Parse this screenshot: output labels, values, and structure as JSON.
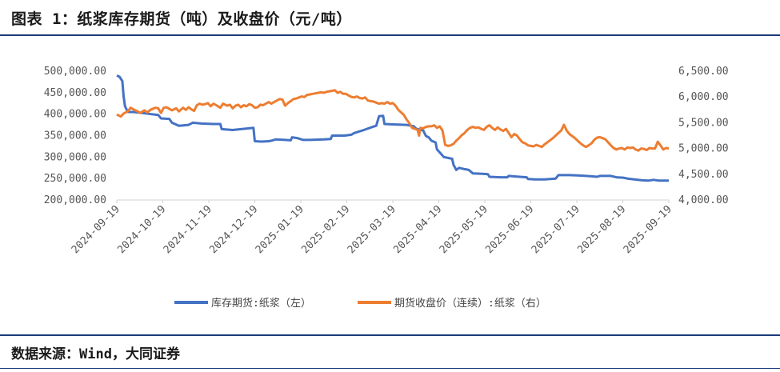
{
  "header": {
    "title": "图表 1：纸浆库存期货（吨）及收盘价（元/吨）"
  },
  "footer": {
    "source": "数据来源：Wind，大同证券"
  },
  "chart_data": {
    "type": "line",
    "x_labels": [
      "2024-09-19",
      "2024-10-19",
      "2024-11-19",
      "2024-12-19",
      "2025-01-19",
      "2025-02-19",
      "2025-03-19",
      "2025-04-19",
      "2025-05-19",
      "2025-06-19",
      "2025-07-19",
      "2025-08-19",
      "2025-09-19"
    ],
    "y_left": {
      "ticks": [
        "200,000.00",
        "250,000.00",
        "300,000.00",
        "350,000.00",
        "400,000.00",
        "450,000.00",
        "500,000.00"
      ],
      "range": [
        200000,
        500000
      ]
    },
    "y_right": {
      "ticks": [
        "4,000.00",
        "4,500.00",
        "5,000.00",
        "5,500.00",
        "6,000.00",
        "6,500.00"
      ],
      "range": [
        4000,
        6500
      ]
    },
    "grid": false,
    "legend_position": "bottom",
    "series": [
      {
        "name": "库存期货:纸浆（左）",
        "axis": "left",
        "color": "#4472c4",
        "points": [
          [
            0,
            490000
          ],
          [
            2,
            487000
          ],
          [
            4,
            477000
          ],
          [
            5,
            440000
          ],
          [
            6,
            418000
          ],
          [
            8,
            405000
          ],
          [
            12,
            405000
          ],
          [
            18,
            403000
          ],
          [
            25,
            400000
          ],
          [
            30,
            398000
          ],
          [
            32,
            390000
          ],
          [
            38,
            389000
          ],
          [
            40,
            380000
          ],
          [
            45,
            373000
          ],
          [
            52,
            375000
          ],
          [
            55,
            380000
          ],
          [
            62,
            378000
          ],
          [
            70,
            377000
          ],
          [
            75,
            377000
          ],
          [
            76,
            365000
          ],
          [
            84,
            363000
          ],
          [
            90,
            365000
          ],
          [
            96,
            367000
          ],
          [
            99,
            368000
          ],
          [
            100,
            337000
          ],
          [
            105,
            336000
          ],
          [
            110,
            337000
          ],
          [
            112,
            338000
          ],
          [
            115,
            341000
          ],
          [
            122,
            340000
          ],
          [
            126,
            339000
          ],
          [
            127,
            346000
          ],
          [
            131,
            344000
          ],
          [
            135,
            340000
          ],
          [
            140,
            340000
          ],
          [
            150,
            341000
          ],
          [
            155,
            342000
          ],
          [
            156,
            350000
          ],
          [
            165,
            350000
          ],
          [
            170,
            352000
          ],
          [
            172,
            356000
          ],
          [
            178,
            362000
          ],
          [
            185,
            370000
          ],
          [
            188,
            373000
          ],
          [
            190,
            395000
          ],
          [
            193,
            396000
          ],
          [
            194,
            377000
          ],
          [
            200,
            376000
          ],
          [
            210,
            375000
          ],
          [
            215,
            372000
          ],
          [
            217,
            366000
          ],
          [
            222,
            362000
          ],
          [
            224,
            349000
          ],
          [
            226,
            346000
          ],
          [
            228,
            338000
          ],
          [
            231,
            334000
          ],
          [
            232,
            318000
          ],
          [
            237,
            300000
          ],
          [
            240,
            298000
          ],
          [
            243,
            296000
          ],
          [
            244,
            282000
          ],
          [
            246,
            270000
          ],
          [
            248,
            275000
          ],
          [
            252,
            272000
          ],
          [
            255,
            270000
          ],
          [
            258,
            262000
          ],
          [
            265,
            261000
          ],
          [
            269,
            260000
          ],
          [
            270,
            254000
          ],
          [
            278,
            253000
          ],
          [
            283,
            253000
          ],
          [
            284,
            256000
          ],
          [
            288,
            255000
          ],
          [
            292,
            254000
          ],
          [
            297,
            253000
          ],
          [
            298,
            249000
          ],
          [
            303,
            248000
          ],
          [
            310,
            248000
          ],
          [
            318,
            250000
          ],
          [
            320,
            258000
          ],
          [
            328,
            258000
          ],
          [
            335,
            257000
          ],
          [
            340,
            256000
          ],
          [
            345,
            255000
          ],
          [
            348,
            254000
          ],
          [
            350,
            256000
          ],
          [
            358,
            256000
          ],
          [
            362,
            253000
          ],
          [
            367,
            252000
          ],
          [
            370,
            250000
          ],
          [
            375,
            248000
          ],
          [
            380,
            246000
          ],
          [
            385,
            245000
          ],
          [
            389,
            247000
          ],
          [
            393,
            245000
          ],
          [
            398,
            245000
          ],
          [
            400,
            245000
          ]
        ]
      },
      {
        "name": "期货收盘价（连续）:纸浆（右）",
        "axis": "right",
        "color": "#ed7d31",
        "points": [
          [
            0,
            5660
          ],
          [
            3,
            5620
          ],
          [
            5,
            5680
          ],
          [
            8,
            5720
          ],
          [
            10,
            5790
          ],
          [
            12,
            5760
          ],
          [
            15,
            5720
          ],
          [
            17,
            5690
          ],
          [
            20,
            5740
          ],
          [
            22,
            5700
          ],
          [
            25,
            5760
          ],
          [
            28,
            5790
          ],
          [
            30,
            5780
          ],
          [
            32,
            5690
          ],
          [
            34,
            5790
          ],
          [
            36,
            5800
          ],
          [
            38,
            5770
          ],
          [
            40,
            5740
          ],
          [
            43,
            5780
          ],
          [
            45,
            5720
          ],
          [
            48,
            5790
          ],
          [
            50,
            5750
          ],
          [
            52,
            5800
          ],
          [
            54,
            5760
          ],
          [
            56,
            5730
          ],
          [
            58,
            5840
          ],
          [
            60,
            5870
          ],
          [
            62,
            5850
          ],
          [
            64,
            5860
          ],
          [
            66,
            5880
          ],
          [
            68,
            5820
          ],
          [
            70,
            5870
          ],
          [
            72,
            5840
          ],
          [
            75,
            5790
          ],
          [
            77,
            5870
          ],
          [
            80,
            5830
          ],
          [
            82,
            5850
          ],
          [
            84,
            5780
          ],
          [
            86,
            5830
          ],
          [
            88,
            5850
          ],
          [
            90,
            5800
          ],
          [
            92,
            5840
          ],
          [
            94,
            5820
          ],
          [
            96,
            5860
          ],
          [
            98,
            5840
          ],
          [
            100,
            5790
          ],
          [
            102,
            5800
          ],
          [
            104,
            5850
          ],
          [
            106,
            5840
          ],
          [
            108,
            5870
          ],
          [
            110,
            5900
          ],
          [
            112,
            5870
          ],
          [
            114,
            5900
          ],
          [
            116,
            5930
          ],
          [
            118,
            5960
          ],
          [
            120,
            5950
          ],
          [
            122,
            5830
          ],
          [
            124,
            5880
          ],
          [
            126,
            5920
          ],
          [
            128,
            5960
          ],
          [
            130,
            5970
          ],
          [
            132,
            5990
          ],
          [
            134,
            6010
          ],
          [
            136,
            6000
          ],
          [
            138,
            6040
          ],
          [
            140,
            6050
          ],
          [
            142,
            6060
          ],
          [
            144,
            6070
          ],
          [
            146,
            6080
          ],
          [
            148,
            6090
          ],
          [
            150,
            6080
          ],
          [
            152,
            6100
          ],
          [
            154,
            6110
          ],
          [
            156,
            6120
          ],
          [
            158,
            6130
          ],
          [
            160,
            6080
          ],
          [
            162,
            6100
          ],
          [
            164,
            6060
          ],
          [
            166,
            6060
          ],
          [
            168,
            6030
          ],
          [
            170,
            6000
          ],
          [
            172,
            5990
          ],
          [
            174,
            6010
          ],
          [
            176,
            5980
          ],
          [
            178,
            5970
          ],
          [
            180,
            5990
          ],
          [
            182,
            5930
          ],
          [
            184,
            5920
          ],
          [
            186,
            5910
          ],
          [
            188,
            5890
          ],
          [
            190,
            5870
          ],
          [
            192,
            5880
          ],
          [
            194,
            5870
          ],
          [
            196,
            5900
          ],
          [
            198,
            5870
          ],
          [
            200,
            5880
          ],
          [
            202,
            5830
          ],
          [
            204,
            5750
          ],
          [
            206,
            5700
          ],
          [
            208,
            5650
          ],
          [
            210,
            5560
          ],
          [
            212,
            5490
          ],
          [
            214,
            5400
          ],
          [
            216,
            5380
          ],
          [
            218,
            5360
          ],
          [
            219,
            5250
          ],
          [
            220,
            5400
          ],
          [
            222,
            5390
          ],
          [
            224,
            5420
          ],
          [
            226,
            5430
          ],
          [
            228,
            5430
          ],
          [
            230,
            5450
          ],
          [
            232,
            5400
          ],
          [
            234,
            5430
          ],
          [
            236,
            5350
          ],
          [
            238,
            5070
          ],
          [
            240,
            5050
          ],
          [
            242,
            5060
          ],
          [
            244,
            5090
          ],
          [
            246,
            5150
          ],
          [
            248,
            5200
          ],
          [
            250,
            5260
          ],
          [
            252,
            5300
          ],
          [
            254,
            5360
          ],
          [
            256,
            5400
          ],
          [
            258,
            5420
          ],
          [
            260,
            5400
          ],
          [
            262,
            5410
          ],
          [
            264,
            5380
          ],
          [
            266,
            5360
          ],
          [
            268,
            5420
          ],
          [
            270,
            5450
          ],
          [
            272,
            5400
          ],
          [
            274,
            5360
          ],
          [
            276,
            5410
          ],
          [
            278,
            5370
          ],
          [
            280,
            5340
          ],
          [
            282,
            5380
          ],
          [
            284,
            5300
          ],
          [
            286,
            5220
          ],
          [
            288,
            5280
          ],
          [
            290,
            5250
          ],
          [
            292,
            5180
          ],
          [
            294,
            5120
          ],
          [
            296,
            5100
          ],
          [
            298,
            5060
          ],
          [
            300,
            5050
          ],
          [
            302,
            5040
          ],
          [
            304,
            5070
          ],
          [
            306,
            5050
          ],
          [
            308,
            5030
          ],
          [
            310,
            5080
          ],
          [
            312,
            5120
          ],
          [
            314,
            5160
          ],
          [
            316,
            5200
          ],
          [
            318,
            5250
          ],
          [
            320,
            5300
          ],
          [
            322,
            5350
          ],
          [
            324,
            5460
          ],
          [
            326,
            5350
          ],
          [
            328,
            5280
          ],
          [
            330,
            5240
          ],
          [
            332,
            5200
          ],
          [
            334,
            5150
          ],
          [
            336,
            5100
          ],
          [
            338,
            5060
          ],
          [
            340,
            5030
          ],
          [
            342,
            5060
          ],
          [
            344,
            5100
          ],
          [
            346,
            5170
          ],
          [
            348,
            5210
          ],
          [
            350,
            5220
          ],
          [
            352,
            5200
          ],
          [
            354,
            5180
          ],
          [
            356,
            5120
          ],
          [
            358,
            5060
          ],
          [
            360,
            5010
          ],
          [
            362,
            4980
          ],
          [
            364,
            5000
          ],
          [
            366,
            5010
          ],
          [
            368,
            4980
          ],
          [
            370,
            5020
          ],
          [
            372,
            5010
          ],
          [
            374,
            5020
          ],
          [
            376,
            4980
          ],
          [
            378,
            4960
          ],
          [
            380,
            5000
          ],
          [
            382,
            4990
          ],
          [
            384,
            4970
          ],
          [
            386,
            5010
          ],
          [
            388,
            5000
          ],
          [
            390,
            5000
          ],
          [
            392,
            5130
          ],
          [
            394,
            5060
          ],
          [
            396,
            4980
          ],
          [
            398,
            5010
          ],
          [
            400,
            5000
          ]
        ]
      }
    ]
  }
}
